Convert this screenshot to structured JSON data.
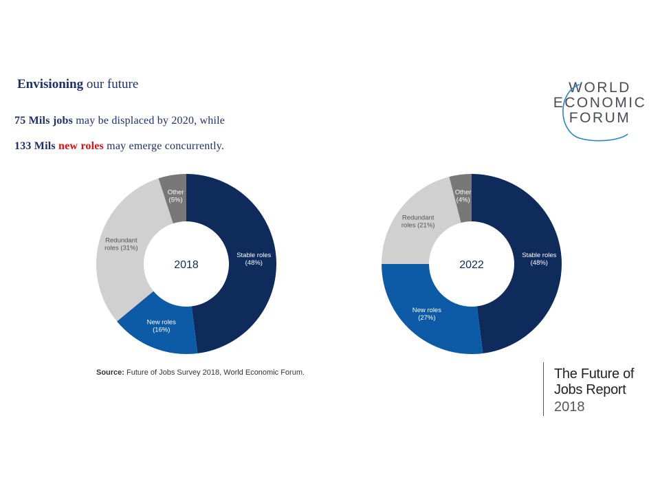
{
  "heading": {
    "strong": "Envisioning",
    "rest": " our future"
  },
  "line1": {
    "strong": "75 Mils jobs",
    "rest": " may be displaced by 2020, while"
  },
  "line2": {
    "strong": "133 Mils ",
    "red": "new roles",
    "rest": " may emerge concurrently."
  },
  "logo": {
    "row1": "WORLD",
    "row2": "ECONOMIC",
    "row3": "FORUM"
  },
  "source": {
    "label": "Source:",
    "text": " Future of Jobs Survey 2018, World Economic Forum."
  },
  "report": {
    "line1": "The Future of",
    "line2": "Jobs Report",
    "year": "2018"
  },
  "colors": {
    "stable": "#0e2b5c",
    "new": "#0d5aa7",
    "redundant": "#d0d0d0",
    "other": "#787878",
    "heading_text": "#1d2f6f",
    "highlight_red": "#e01010"
  },
  "chart_data": [
    {
      "type": "pie",
      "center_label": "2018",
      "slices": [
        {
          "label": [
            "Stable roles",
            "(48%)"
          ],
          "value": 48,
          "key": "stable"
        },
        {
          "label": [
            "New roles",
            "(16%)"
          ],
          "value": 16,
          "key": "new"
        },
        {
          "label": [
            "Redundant",
            "roles (31%)"
          ],
          "value": 31,
          "key": "redundant"
        },
        {
          "label": [
            "Other",
            "(5%)"
          ],
          "value": 5,
          "key": "other"
        }
      ]
    },
    {
      "type": "pie",
      "center_label": "2022",
      "slices": [
        {
          "label": [
            "Stable roles",
            "(48%)"
          ],
          "value": 48,
          "key": "stable"
        },
        {
          "label": [
            "New roles",
            "(27%)"
          ],
          "value": 27,
          "key": "new"
        },
        {
          "label": [
            "Redundant",
            "roles (21%)"
          ],
          "value": 21,
          "key": "redundant"
        },
        {
          "label": [
            "Other",
            "(4%)"
          ],
          "value": 4,
          "key": "other"
        }
      ]
    }
  ]
}
